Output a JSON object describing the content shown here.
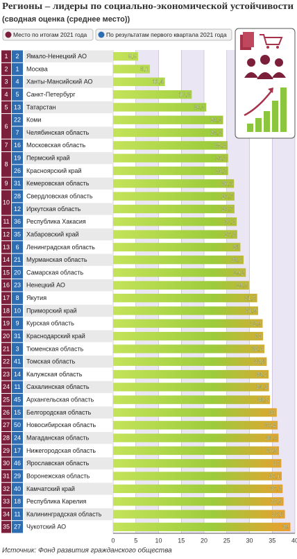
{
  "chart_data": {
    "type": "bar",
    "title": "Регионы – лидеры по социально-экономической устойчивости",
    "subtitle": "(сводная оценка (среднее место))",
    "legend": [
      {
        "label": "Место по итогам 2021 года",
        "color": "#7b1f3a"
      },
      {
        "label": "По результатам первого квартала 2021 года",
        "color": "#2f6db3"
      }
    ],
    "categories": [
      "Ямало-Ненецкий АО",
      "Москва",
      "Ханты-Мансийский АО",
      "Санкт-Петербург",
      "Татарстан",
      "Коми",
      "Челябинская область",
      "Московская область",
      "Пермский край",
      "Красноярский край",
      "Кемеровская область",
      "Свердловская область",
      "Иркутская область",
      "Республика Хакасия",
      "Хабаровский край",
      "Ленинградская область",
      "Мурманская область",
      "Самарская область",
      "Ненецкий АО",
      "Якутия",
      "Приморский край",
      "Курская область",
      "Краснодарский край",
      "Тюменская область",
      "Томская область",
      "Калужская область",
      "Сахалинская область",
      "Архангельская область",
      "Белгородская область",
      "Новосибирская область",
      "Магаданская область",
      "Нижегородская область",
      "Ярославская область",
      "Воронежская область",
      "Камчатский край",
      "Республика Карелия",
      "Калининградская область",
      "Чукотский АО"
    ],
    "ranks_2021": [
      1,
      2,
      3,
      4,
      5,
      6,
      null,
      7,
      8,
      null,
      9,
      10,
      null,
      11,
      12,
      13,
      14,
      15,
      16,
      17,
      18,
      19,
      20,
      21,
      22,
      23,
      24,
      25,
      26,
      27,
      28,
      29,
      30,
      31,
      32,
      33,
      34,
      35
    ],
    "ranks_q1": [
      2,
      1,
      4,
      5,
      13,
      22,
      7,
      16,
      19,
      26,
      31,
      28,
      12,
      36,
      35,
      6,
      21,
      20,
      23,
      8,
      10,
      9,
      31,
      3,
      41,
      14,
      11,
      45,
      15,
      50,
      24,
      17,
      46,
      29,
      40,
      18,
      11,
      27
    ],
    "values": [
      5.5,
      8.1,
      11.4,
      17.3,
      20.5,
      24.2,
      24.2,
      25.2,
      25.3,
      25.3,
      26.6,
      26.7,
      26.7,
      27.2,
      27.3,
      28,
      28.7,
      29.2,
      29.9,
      31.7,
      31.9,
      32.9,
      33,
      33.3,
      33.8,
      34.2,
      34.3,
      34.5,
      36,
      36.2,
      36.4,
      36.5,
      37,
      37.1,
      37.3,
      37.5,
      37.8,
      39
    ],
    "value_labels": [
      "5,5",
      "8,1",
      "11,4",
      "17,3",
      "20,5",
      "24,2",
      "24,2",
      "25,2",
      "25,3",
      "25,3",
      "26,6",
      "26,7",
      "26,7",
      "27,2",
      "27,3",
      "28",
      "28,7",
      "29,2",
      "29,9",
      "31,7",
      "31,9",
      "32,9",
      "33",
      "33,3",
      "33,8",
      "34,2",
      "34,3",
      "34,5",
      "36",
      "36,2",
      "36,4",
      "36,5",
      "37",
      "37,1",
      "37,3",
      "37,5",
      "37,8",
      "39"
    ],
    "xlim": [
      0,
      40
    ],
    "xticks": [
      0,
      5,
      10,
      15,
      20,
      25,
      30,
      35,
      40
    ],
    "color_start": "#c4e35a",
    "color_end": "#f29a2e",
    "source": "Источник: Фонд развития гражданского общества"
  }
}
